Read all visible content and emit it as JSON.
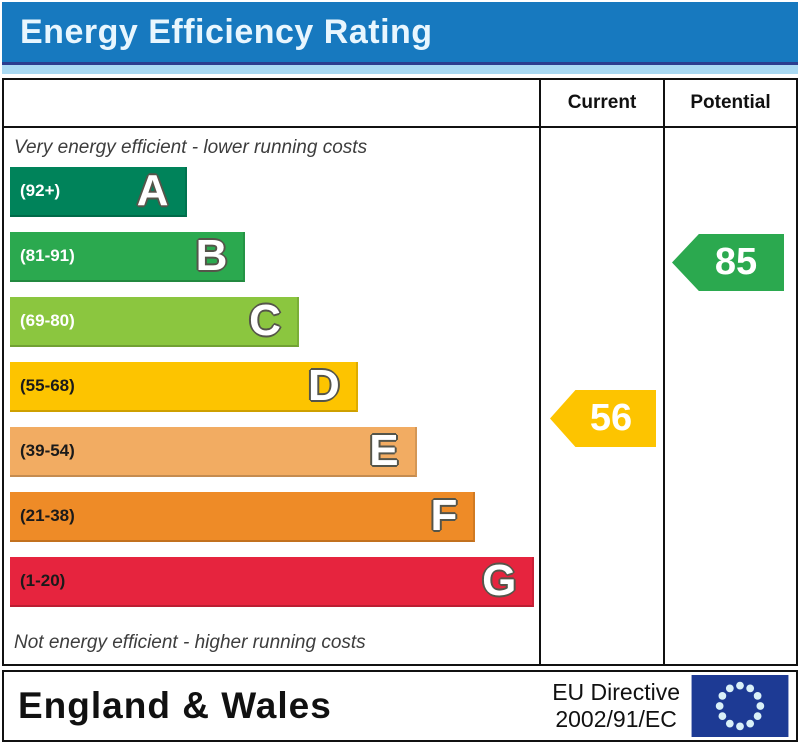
{
  "title": "Energy Efficiency Rating",
  "columns": {
    "current": "Current",
    "potential": "Potential"
  },
  "notes": {
    "top": "Very energy efficient - lower running costs",
    "bottom": "Not energy efficient - higher running costs"
  },
  "bands": [
    {
      "letter": "A",
      "range": "(92+)",
      "color": "#00835a",
      "range_color": "#ffffff",
      "width_pct": 33
    },
    {
      "letter": "B",
      "range": "(81-91)",
      "color": "#2ba94f",
      "range_color": "#ffffff",
      "width_pct": 44
    },
    {
      "letter": "C",
      "range": "(69-80)",
      "color": "#8bc63f",
      "range_color": "#ffffff",
      "width_pct": 54
    },
    {
      "letter": "D",
      "range": "(55-68)",
      "color": "#fdc400",
      "range_color": "#1a1a1a",
      "width_pct": 65
    },
    {
      "letter": "E",
      "range": "(39-54)",
      "color": "#f2ac62",
      "range_color": "#1a1a1a",
      "width_pct": 76
    },
    {
      "letter": "F",
      "range": "(21-38)",
      "color": "#ee8b27",
      "range_color": "#1a1a1a",
      "width_pct": 87
    },
    {
      "letter": "G",
      "range": "(1-20)",
      "color": "#e6243e",
      "range_color": "#1a1a1a",
      "width_pct": 98
    }
  ],
  "ratings": {
    "current": {
      "value": "56",
      "color": "#fdc400",
      "band": "D"
    },
    "potential": {
      "value": "85",
      "color": "#2ba94f",
      "band": "B"
    }
  },
  "footer": {
    "region": "England & Wales",
    "directive_line1": "EU Directive",
    "directive_line2": "2002/91/EC"
  },
  "colors": {
    "title_bar_bg": "#1779bf",
    "title_text": "#e8f6fe",
    "title_strip": "#a9d9f2",
    "border": "#111111",
    "flag_bg": "#1d3a94",
    "flag_star": "#d9f0f8"
  },
  "chart_data": {
    "type": "bar",
    "title": "Energy Efficiency Rating",
    "categories": [
      "A (92+)",
      "B (81-91)",
      "C (69-80)",
      "D (55-68)",
      "E (39-54)",
      "F (21-38)",
      "G (1-20)"
    ],
    "values": [
      33,
      44,
      54,
      65,
      76,
      87,
      98
    ],
    "value_unit": "relative bar length, percent of chart column width",
    "series_colors": [
      "#00835a",
      "#2ba94f",
      "#8bc63f",
      "#fdc400",
      "#f2ac62",
      "#ee8b27",
      "#e6243e"
    ],
    "markers": [
      {
        "name": "Current",
        "value": 56,
        "band": "D",
        "color": "#fdc400"
      },
      {
        "name": "Potential",
        "value": 85,
        "band": "B",
        "color": "#2ba94f"
      }
    ],
    "annotations": [
      "Very energy efficient - lower running costs",
      "Not energy efficient - higher running costs"
    ],
    "columns": [
      "Current",
      "Potential"
    ],
    "footer": [
      "England & Wales",
      "EU Directive 2002/91/EC"
    ],
    "legend_position": "none",
    "axis_range": [
      1,
      100
    ]
  }
}
